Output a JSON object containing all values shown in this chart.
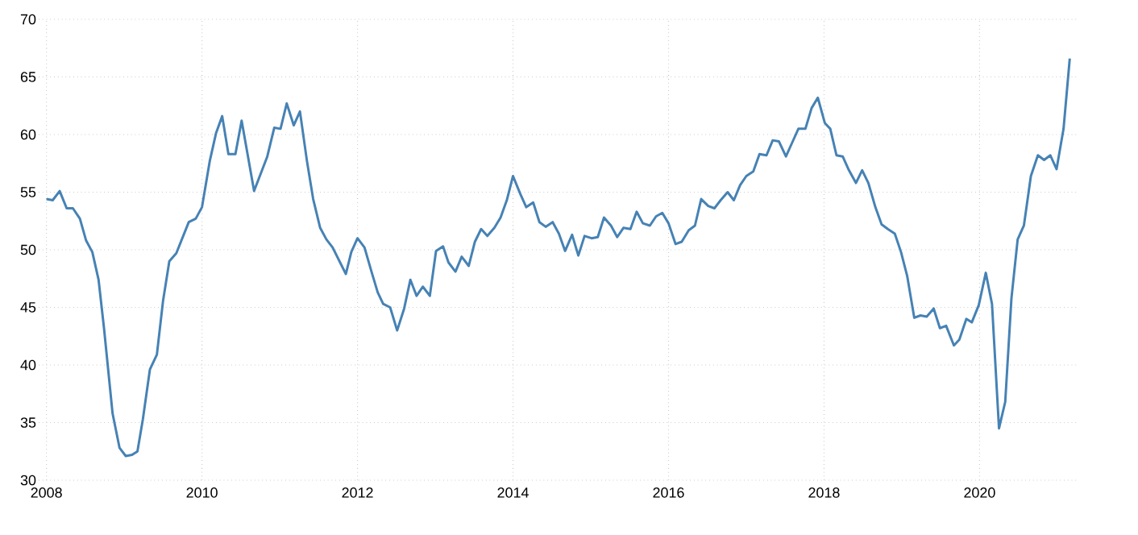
{
  "chart_data": {
    "type": "line",
    "x": [
      2008.0,
      2008.08,
      2008.17,
      2008.26,
      2008.34,
      2008.43,
      2008.51,
      2008.59,
      2008.67,
      2008.74,
      2008.85,
      2008.94,
      2009.02,
      2009.1,
      2009.17,
      2009.24,
      2009.33,
      2009.42,
      2009.5,
      2009.58,
      2009.67,
      2009.83,
      2009.92,
      2010.0,
      2010.1,
      2010.18,
      2010.26,
      2010.34,
      2010.43,
      2010.51,
      2010.67,
      2010.84,
      2010.93,
      2011.01,
      2011.09,
      2011.18,
      2011.26,
      2011.35,
      2011.43,
      2011.52,
      2011.6,
      2011.68,
      2011.85,
      2011.92,
      2012.0,
      2012.09,
      2012.18,
      2012.26,
      2012.33,
      2012.42,
      2012.51,
      2012.6,
      2012.68,
      2012.76,
      2012.84,
      2012.93,
      2013.01,
      2013.1,
      2013.17,
      2013.26,
      2013.34,
      2013.43,
      2013.51,
      2013.59,
      2013.67,
      2013.76,
      2013.84,
      2013.92,
      2014.0,
      2014.09,
      2014.17,
      2014.26,
      2014.34,
      2014.42,
      2014.51,
      2014.59,
      2014.67,
      2014.76,
      2014.84,
      2014.92,
      2015.01,
      2015.09,
      2015.17,
      2015.26,
      2015.34,
      2015.42,
      2015.51,
      2015.59,
      2015.67,
      2015.76,
      2015.84,
      2015.92,
      2016.0,
      2016.09,
      2016.17,
      2016.26,
      2016.34,
      2016.42,
      2016.51,
      2016.59,
      2016.67,
      2016.76,
      2016.84,
      2016.92,
      2017.0,
      2017.09,
      2017.17,
      2017.26,
      2017.34,
      2017.42,
      2017.51,
      2017.59,
      2017.67,
      2017.76,
      2017.84,
      2017.92,
      2018.01,
      2018.08,
      2018.16,
      2018.24,
      2018.32,
      2018.41,
      2018.49,
      2018.57,
      2018.66,
      2018.74,
      2018.82,
      2018.91,
      2018.99,
      2019.07,
      2019.16,
      2019.24,
      2019.32,
      2019.41,
      2019.49,
      2019.57,
      2019.67,
      2019.74,
      2019.83,
      2019.9,
      2019.99,
      2020.08,
      2020.16,
      2020.25,
      2020.33,
      2020.41,
      2020.49,
      2020.57,
      2020.66,
      2020.75,
      2020.83,
      2020.91,
      2020.99,
      2021.08,
      2021.16
    ],
    "series": [
      {
        "color": "#4682b4",
        "values": [
          54.4,
          54.3,
          55.1,
          53.6,
          53.6,
          52.7,
          50.8,
          49.8,
          47.4,
          43.2,
          35.8,
          32.8,
          32.1,
          32.2,
          32.5,
          35.3,
          39.6,
          40.9,
          45.6,
          49.0,
          49.7,
          52.4,
          52.7,
          53.7,
          57.7,
          60.1,
          61.6,
          58.3,
          58.3,
          61.2,
          55.1,
          58.1,
          60.6,
          60.5,
          62.7,
          60.8,
          62.0,
          57.7,
          54.4,
          51.9,
          50.9,
          50.2,
          47.9,
          49.8,
          51.0,
          50.2,
          48.1,
          46.3,
          45.3,
          45.0,
          43.0,
          44.9,
          47.4,
          46.0,
          46.8,
          46.0,
          49.9,
          50.3,
          48.9,
          48.1,
          49.4,
          48.6,
          50.7,
          51.8,
          51.2,
          51.9,
          52.8,
          54.3,
          56.4,
          54.9,
          53.7,
          54.1,
          52.4,
          52.0,
          52.4,
          51.4,
          49.9,
          51.3,
          49.5,
          51.2,
          51.0,
          51.1,
          52.8,
          52.1,
          51.1,
          51.9,
          51.8,
          53.3,
          52.3,
          52.1,
          52.9,
          53.2,
          52.3,
          50.5,
          50.7,
          51.7,
          52.1,
          54.4,
          53.8,
          53.6,
          54.3,
          55.0,
          54.3,
          55.6,
          56.4,
          56.8,
          58.3,
          58.2,
          59.5,
          59.4,
          58.1,
          59.3,
          60.5,
          60.5,
          62.3,
          63.2,
          61.0,
          60.5,
          58.2,
          58.1,
          56.9,
          55.8,
          56.9,
          55.8,
          53.7,
          52.2,
          51.8,
          51.4,
          49.8,
          47.7,
          44.1,
          44.3,
          44.2,
          44.9,
          43.2,
          43.4,
          41.7,
          42.2,
          44.0,
          43.7,
          45.2,
          48.0,
          45.3,
          34.5,
          36.8,
          45.8,
          50.9,
          52.1,
          56.4,
          58.2,
          57.8,
          58.2,
          57.0,
          60.5,
          66.6
        ]
      }
    ],
    "xlim": [
      2007.9,
      2021.25
    ],
    "ylim": [
      30,
      70
    ],
    "xticks": [
      2008,
      2010,
      2012,
      2014,
      2016,
      2018,
      2020
    ],
    "yticks": [
      30,
      35,
      40,
      45,
      50,
      55,
      60,
      65,
      70
    ],
    "grid": true,
    "line_style": "solid",
    "marker": "none"
  }
}
